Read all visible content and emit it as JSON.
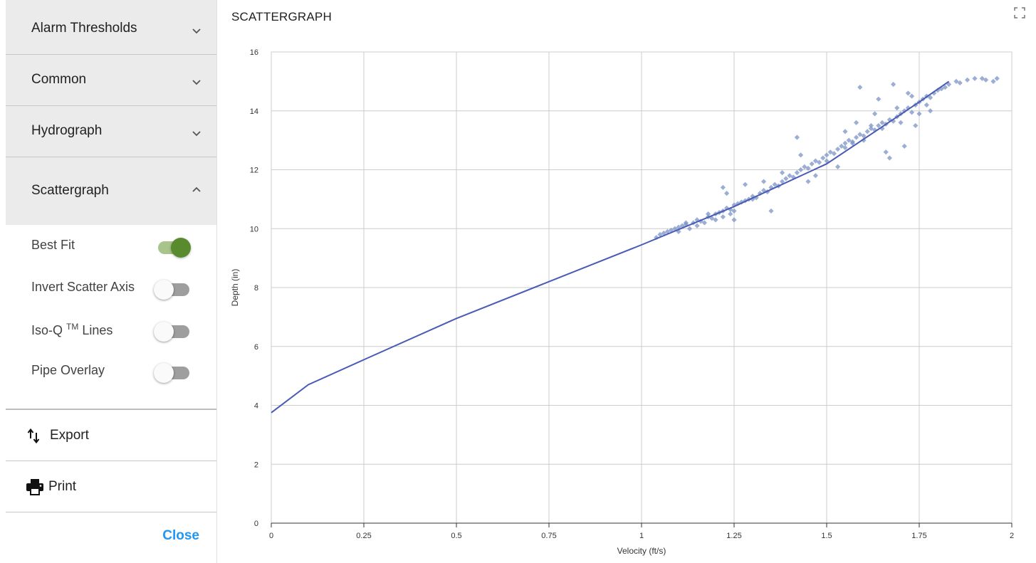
{
  "sidebar": {
    "sections": [
      {
        "label": "Alarm Thresholds",
        "expanded": false
      },
      {
        "label": "Common",
        "expanded": false
      },
      {
        "label": "Hydrograph",
        "expanded": false
      },
      {
        "label": "Scattergraph",
        "expanded": true
      }
    ],
    "toggles": [
      {
        "label": "Best Fit",
        "on": true
      },
      {
        "label": "Invert Scatter Axis",
        "on": false
      },
      {
        "label_prefix": "Iso-Q ",
        "label_sup": "TM",
        "label_suffix": " Lines",
        "on": false
      },
      {
        "label": "Pipe Overlay",
        "on": false
      }
    ],
    "export_label": "Export",
    "print_label": "Print",
    "close_label": "Close"
  },
  "chart_title": "SCATTERGRAPH",
  "chart_data": {
    "type": "scatter",
    "title": "SCATTERGRAPH",
    "xlabel": "Velocity (ft/s)",
    "ylabel": "Depth (in)",
    "xlim": [
      0,
      2
    ],
    "ylim": [
      0,
      16
    ],
    "xticks": [
      0,
      0.25,
      0.5,
      0.75,
      1,
      1.25,
      1.5,
      1.75,
      2
    ],
    "xtick_labels": [
      "0",
      "0.25",
      "0.5",
      "0.75",
      "1",
      "1.25",
      "1.5",
      "1.75",
      "2"
    ],
    "yticks": [
      0,
      2,
      4,
      6,
      8,
      10,
      12,
      14,
      16
    ],
    "ytick_labels": [
      "0",
      "2",
      "4",
      "6",
      "8",
      "10",
      "12",
      "14",
      "16"
    ],
    "grid": true,
    "point_color": "#7b93c4",
    "line_color": "#4a5bb5",
    "best_fit": {
      "x": [
        0,
        0.1,
        0.25,
        0.5,
        0.75,
        1.0,
        1.25,
        1.5,
        1.75,
        1.83
      ],
      "y": [
        3.75,
        4.7,
        5.55,
        6.95,
        8.2,
        9.45,
        10.75,
        12.2,
        14.3,
        15.0
      ]
    },
    "scatter_points": {
      "x": [
        1.04,
        1.05,
        1.06,
        1.07,
        1.08,
        1.09,
        1.1,
        1.1,
        1.11,
        1.12,
        1.13,
        1.14,
        1.15,
        1.15,
        1.16,
        1.17,
        1.18,
        1.19,
        1.2,
        1.2,
        1.21,
        1.22,
        1.22,
        1.23,
        1.24,
        1.24,
        1.25,
        1.25,
        1.26,
        1.27,
        1.28,
        1.29,
        1.3,
        1.31,
        1.32,
        1.33,
        1.34,
        1.35,
        1.36,
        1.37,
        1.38,
        1.39,
        1.4,
        1.41,
        1.42,
        1.43,
        1.44,
        1.45,
        1.46,
        1.47,
        1.48,
        1.49,
        1.5,
        1.5,
        1.51,
        1.52,
        1.53,
        1.54,
        1.55,
        1.55,
        1.56,
        1.57,
        1.58,
        1.59,
        1.6,
        1.6,
        1.61,
        1.62,
        1.63,
        1.64,
        1.65,
        1.65,
        1.66,
        1.67,
        1.68,
        1.69,
        1.7,
        1.7,
        1.71,
        1.72,
        1.73,
        1.74,
        1.75,
        1.75,
        1.76,
        1.77,
        1.78,
        1.79,
        1.8,
        1.81,
        1.82,
        1.83,
        1.85,
        1.86,
        1.88,
        1.9,
        1.92,
        1.93,
        1.95,
        1.96,
        1.12,
        1.18,
        1.23,
        1.28,
        1.33,
        1.38,
        1.43,
        1.47,
        1.53,
        1.57,
        1.62,
        1.66,
        1.69,
        1.72,
        1.74,
        1.77,
        1.64,
        1.59,
        1.68,
        1.73,
        1.22,
        1.25,
        1.42,
        1.55,
        1.78,
        1.71,
        1.67,
        1.63,
        1.58,
        1.45,
        1.35,
        1.3
      ],
      "y": [
        9.7,
        9.8,
        9.85,
        9.9,
        9.95,
        10.0,
        10.05,
        9.9,
        10.1,
        10.15,
        10.0,
        10.2,
        10.1,
        10.3,
        10.25,
        10.2,
        10.4,
        10.35,
        10.5,
        10.3,
        10.55,
        10.6,
        10.4,
        10.7,
        10.65,
        10.5,
        10.8,
        10.6,
        10.85,
        10.9,
        10.95,
        11.0,
        11.1,
        11.05,
        11.2,
        11.3,
        11.25,
        11.4,
        11.5,
        11.45,
        11.6,
        11.7,
        11.8,
        11.75,
        11.9,
        12.0,
        12.1,
        12.05,
        12.2,
        12.3,
        12.25,
        12.4,
        12.5,
        12.3,
        12.6,
        12.55,
        12.7,
        12.8,
        12.75,
        12.9,
        13.0,
        12.95,
        13.1,
        13.2,
        13.15,
        13.0,
        13.3,
        13.4,
        13.35,
        13.5,
        13.6,
        13.4,
        13.55,
        13.7,
        13.65,
        13.8,
        13.9,
        13.6,
        14.0,
        14.1,
        13.95,
        14.2,
        14.3,
        13.9,
        14.4,
        14.5,
        14.45,
        14.6,
        14.7,
        14.75,
        14.8,
        14.9,
        15.0,
        14.95,
        15.05,
        15.1,
        15.1,
        15.05,
        15.0,
        15.1,
        10.2,
        10.5,
        11.2,
        11.5,
        11.6,
        11.9,
        12.5,
        11.8,
        12.1,
        12.9,
        13.5,
        12.6,
        14.1,
        14.6,
        13.5,
        14.2,
        14.4,
        14.8,
        14.9,
        14.5,
        11.4,
        10.3,
        13.1,
        13.3,
        14.0,
        12.8,
        12.4,
        13.9,
        13.6,
        11.6,
        10.6,
        11.0
      ]
    }
  }
}
